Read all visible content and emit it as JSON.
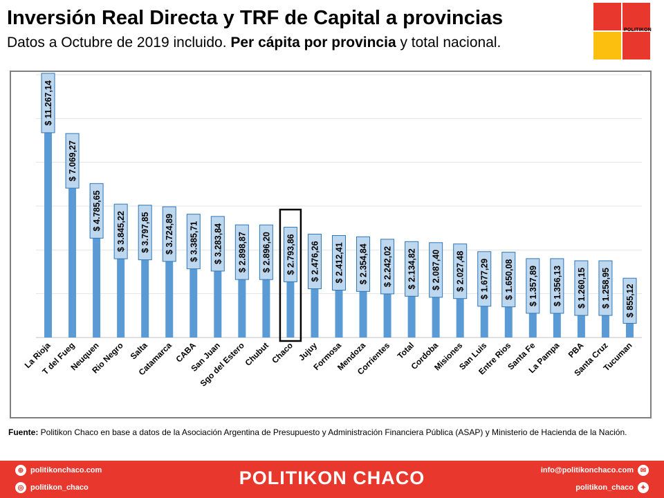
{
  "header": {
    "title": "Inversión Real Directa y TRF de Capital a provincias",
    "subtitle_a": "Datos a Octubre de 2019 incluido. ",
    "subtitle_b": "Per cápita por provincia",
    "subtitle_c": " y total nacional."
  },
  "logo": {
    "text": "POLITIKON"
  },
  "colors": {
    "bar": "#5b9bd5",
    "label_bg": "#bdd7ee",
    "label_border": "#2e75b6",
    "highlight": "#000000",
    "brand": "#e8372c",
    "logo_yellow": "#fcbf0f"
  },
  "chart_data": {
    "type": "bar",
    "categories": [
      "La Rioja",
      "T del Fueg",
      "Neuquen",
      "Rio Negro",
      "Salta",
      "Catamarca",
      "CABA",
      "San Juan",
      "Sgo del Estero",
      "Chubut",
      "Chaco",
      "Jujuy",
      "Formosa",
      "Mendoza",
      "Corrientes",
      "Total",
      "Cordoba",
      "Misiones",
      "San Luis",
      "Entre Rios",
      "Santa Fe",
      "La Pampa",
      "PBA",
      "Santa Cruz",
      "Tucuman"
    ],
    "values": [
      11267.14,
      7069.27,
      4785.65,
      3845.22,
      3797.85,
      3724.89,
      3385.71,
      3283.84,
      2898.87,
      2896.2,
      2793.86,
      2476.26,
      2412.41,
      2354.84,
      2242.02,
      2134.82,
      2087.4,
      2027.48,
      1677.29,
      1650.08,
      1357.89,
      1356.13,
      1260.15,
      1258.95,
      855.12
    ],
    "data_labels": [
      "$ 11.267,14",
      "$ 7.069,27",
      "$ 4.785,65",
      "$ 3.845,22",
      "$ 3.797,85",
      "$ 3.724,89",
      "$ 3.385,71",
      "$ 3.283,84",
      "$ 2.898,87",
      "$ 2.896,20",
      "$ 2.793,86",
      "$ 2.476,26",
      "$ 2.412,41",
      "$ 2.354,84",
      "$ 2.242,02",
      "$ 2.134,82",
      "$ 2.087,40",
      "$ 2.027,48",
      "$ 1.677,29",
      "$ 1.650,08",
      "$ 1.357,89",
      "$ 1.356,13",
      "$ 1.260,15",
      "$ 1.258,95",
      "$ 855,12"
    ],
    "highlight": "Chaco",
    "ylim": [
      0,
      12000
    ],
    "grid": true
  },
  "source": {
    "label": "Fuente:",
    "text": " Politikon Chaco en base a datos de la Asociación Argentina de Presupuesto y Administración Financiera Pública (ASAP) y Ministerio de Hacienda de la Nación."
  },
  "footer": {
    "brand": "POLITIKON CHACO",
    "web": "politikonchaco.com",
    "instagram": "politikon_chaco",
    "email": "info@politikonchaco.com",
    "twitter": "politikon_chaco"
  }
}
